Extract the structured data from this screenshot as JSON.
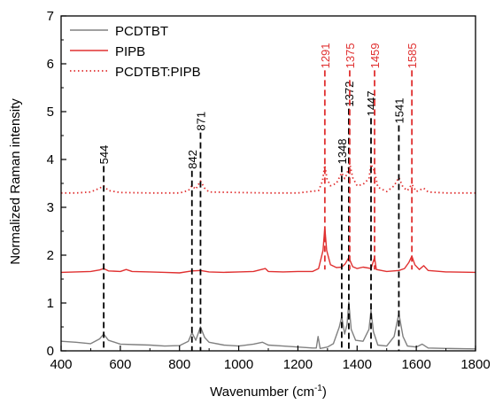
{
  "chart_data": {
    "type": "line",
    "title": "",
    "xlabel_main": "Wavenumber (cm",
    "xlabel_sup": "-1",
    "xlabel_close": ")",
    "ylabel": "Normalized Raman intensity",
    "xlim": [
      400,
      1800
    ],
    "ylim": [
      0,
      7
    ],
    "xticks": [
      400,
      600,
      800,
      1000,
      1200,
      1400,
      1600,
      1800
    ],
    "yticks": [
      0,
      1,
      2,
      3,
      4,
      5,
      6,
      7
    ],
    "legend_position": "top-left",
    "series": [
      {
        "name": "PCDTBT",
        "color": "#808080",
        "style": "solid",
        "baseline": 0.18,
        "points": [
          [
            400,
            0.2
          ],
          [
            450,
            0.18
          ],
          [
            500,
            0.15
          ],
          [
            530,
            0.25
          ],
          [
            544,
            0.35
          ],
          [
            560,
            0.22
          ],
          [
            600,
            0.14
          ],
          [
            650,
            0.13
          ],
          [
            700,
            0.12
          ],
          [
            750,
            0.1
          ],
          [
            800,
            0.11
          ],
          [
            830,
            0.2
          ],
          [
            842,
            0.38
          ],
          [
            855,
            0.22
          ],
          [
            871,
            0.5
          ],
          [
            885,
            0.28
          ],
          [
            900,
            0.18
          ],
          [
            950,
            0.12
          ],
          [
            1000,
            0.1
          ],
          [
            1050,
            0.14
          ],
          [
            1080,
            0.18
          ],
          [
            1100,
            0.12
          ],
          [
            1150,
            0.1
          ],
          [
            1200,
            0.08
          ],
          [
            1250,
            0.06
          ],
          [
            1262,
            0.06
          ],
          [
            1268,
            0.3
          ],
          [
            1275,
            0.05
          ],
          [
            1300,
            0.08
          ],
          [
            1320,
            0.15
          ],
          [
            1340,
            0.5
          ],
          [
            1348,
            0.72
          ],
          [
            1358,
            0.35
          ],
          [
            1366,
            0.55
          ],
          [
            1372,
            1.02
          ],
          [
            1380,
            0.45
          ],
          [
            1395,
            0.22
          ],
          [
            1420,
            0.2
          ],
          [
            1440,
            0.45
          ],
          [
            1447,
            0.85
          ],
          [
            1455,
            0.4
          ],
          [
            1470,
            0.12
          ],
          [
            1500,
            0.1
          ],
          [
            1525,
            0.3
          ],
          [
            1541,
            0.78
          ],
          [
            1555,
            0.3
          ],
          [
            1570,
            0.1
          ],
          [
            1600,
            0.08
          ],
          [
            1620,
            0.14
          ],
          [
            1640,
            0.06
          ],
          [
            1700,
            0.05
          ],
          [
            1800,
            0.04
          ]
        ]
      },
      {
        "name": "PIPB",
        "color": "#e03030",
        "style": "solid",
        "points": [
          [
            400,
            1.64
          ],
          [
            450,
            1.65
          ],
          [
            500,
            1.66
          ],
          [
            530,
            1.69
          ],
          [
            544,
            1.72
          ],
          [
            560,
            1.67
          ],
          [
            600,
            1.66
          ],
          [
            620,
            1.7
          ],
          [
            640,
            1.66
          ],
          [
            700,
            1.65
          ],
          [
            750,
            1.64
          ],
          [
            800,
            1.63
          ],
          [
            842,
            1.67
          ],
          [
            871,
            1.68
          ],
          [
            900,
            1.65
          ],
          [
            950,
            1.64
          ],
          [
            1000,
            1.65
          ],
          [
            1050,
            1.66
          ],
          [
            1090,
            1.72
          ],
          [
            1100,
            1.66
          ],
          [
            1150,
            1.65
          ],
          [
            1200,
            1.66
          ],
          [
            1250,
            1.66
          ],
          [
            1270,
            1.72
          ],
          [
            1285,
            2.1
          ],
          [
            1291,
            2.58
          ],
          [
            1297,
            2.1
          ],
          [
            1310,
            1.8
          ],
          [
            1330,
            1.74
          ],
          [
            1348,
            1.75
          ],
          [
            1360,
            1.82
          ],
          [
            1372,
            1.95
          ],
          [
            1385,
            1.76
          ],
          [
            1400,
            1.72
          ],
          [
            1420,
            1.75
          ],
          [
            1447,
            1.72
          ],
          [
            1459,
            1.95
          ],
          [
            1465,
            1.7
          ],
          [
            1500,
            1.66
          ],
          [
            1541,
            1.68
          ],
          [
            1560,
            1.72
          ],
          [
            1575,
            1.85
          ],
          [
            1585,
            1.98
          ],
          [
            1595,
            1.8
          ],
          [
            1610,
            1.7
          ],
          [
            1625,
            1.78
          ],
          [
            1640,
            1.68
          ],
          [
            1700,
            1.65
          ],
          [
            1800,
            1.64
          ]
        ]
      },
      {
        "name": "PCDTBT:PIPB",
        "color": "#e03030",
        "style": "dotted",
        "points": [
          [
            400,
            3.3
          ],
          [
            450,
            3.3
          ],
          [
            500,
            3.32
          ],
          [
            530,
            3.4
          ],
          [
            544,
            3.45
          ],
          [
            560,
            3.35
          ],
          [
            600,
            3.31
          ],
          [
            700,
            3.3
          ],
          [
            800,
            3.3
          ],
          [
            830,
            3.35
          ],
          [
            842,
            3.45
          ],
          [
            855,
            3.38
          ],
          [
            871,
            3.55
          ],
          [
            885,
            3.4
          ],
          [
            900,
            3.32
          ],
          [
            1000,
            3.31
          ],
          [
            1100,
            3.3
          ],
          [
            1200,
            3.3
          ],
          [
            1270,
            3.35
          ],
          [
            1283,
            3.55
          ],
          [
            1291,
            3.88
          ],
          [
            1298,
            3.6
          ],
          [
            1310,
            3.45
          ],
          [
            1330,
            3.5
          ],
          [
            1348,
            3.72
          ],
          [
            1358,
            3.6
          ],
          [
            1366,
            3.7
          ],
          [
            1375,
            3.92
          ],
          [
            1385,
            3.62
          ],
          [
            1400,
            3.45
          ],
          [
            1420,
            3.48
          ],
          [
            1440,
            3.6
          ],
          [
            1447,
            3.9
          ],
          [
            1459,
            3.75
          ],
          [
            1470,
            3.42
          ],
          [
            1500,
            3.33
          ],
          [
            1525,
            3.45
          ],
          [
            1541,
            3.62
          ],
          [
            1555,
            3.42
          ],
          [
            1570,
            3.35
          ],
          [
            1585,
            3.48
          ],
          [
            1600,
            3.33
          ],
          [
            1625,
            3.4
          ],
          [
            1640,
            3.32
          ],
          [
            1700,
            3.3
          ],
          [
            1800,
            3.3
          ]
        ]
      }
    ],
    "peak_labels": [
      {
        "text": "544",
        "x": 544,
        "y_label": 3.9,
        "line_to": 0.0,
        "color": "#000000"
      },
      {
        "text": "842",
        "x": 842,
        "y_label": 3.8,
        "line_to": 0.0,
        "color": "#000000"
      },
      {
        "text": "871",
        "x": 871,
        "y_label": 4.6,
        "line_to": 0.0,
        "color": "#000000"
      },
      {
        "text": "1348",
        "x": 1348,
        "y_label": 3.9,
        "line_to": 0.0,
        "color": "#000000"
      },
      {
        "text": "1372",
        "x": 1372,
        "y_label": 5.1,
        "line_to": 0.0,
        "color": "#000000"
      },
      {
        "text": "1447",
        "x": 1447,
        "y_label": 4.9,
        "line_to": 0.0,
        "color": "#000000"
      },
      {
        "text": "1541",
        "x": 1541,
        "y_label": 4.75,
        "line_to": 0.0,
        "color": "#000000"
      },
      {
        "text": "1291",
        "x": 1291,
        "y_label": 5.9,
        "line_to": 1.7,
        "color": "#e03030"
      },
      {
        "text": "1375",
        "x": 1375,
        "y_label": 5.9,
        "line_to": 1.7,
        "color": "#e03030"
      },
      {
        "text": "1459",
        "x": 1459,
        "y_label": 5.9,
        "line_to": 1.7,
        "color": "#e03030"
      },
      {
        "text": "1585",
        "x": 1585,
        "y_label": 5.9,
        "line_to": 1.7,
        "color": "#e03030"
      }
    ]
  }
}
